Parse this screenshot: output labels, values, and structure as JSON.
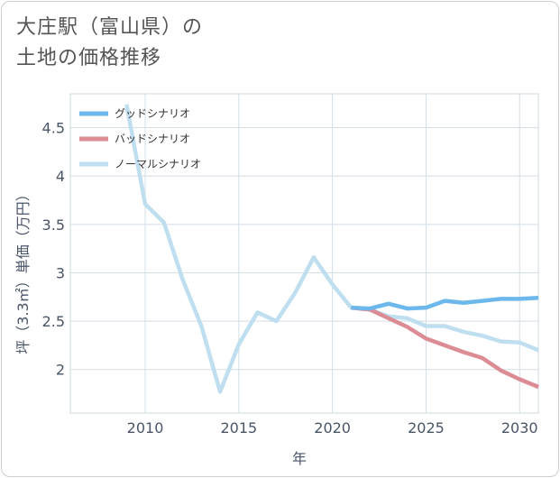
{
  "title_lines": [
    "大庄駅（富山県）の",
    "土地の価格推移"
  ],
  "chart_data": {
    "type": "line",
    "title": "大庄駅（富山県）の土地の価格推移",
    "xlabel": "年",
    "ylabel": "坪（3.3㎡）単価（万円）",
    "xlim": [
      2006,
      2031
    ],
    "ylim": [
      1.55,
      4.85
    ],
    "xticks": [
      2010,
      2015,
      2020,
      2025,
      2030
    ],
    "yticks": [
      2,
      2.5,
      3,
      3.5,
      4,
      4.5
    ],
    "grid": true,
    "legend_position": "top-left",
    "series": [
      {
        "name": "グッドシナリオ",
        "color": "#6cb8ec",
        "x": [
          2021,
          2022,
          2023,
          2024,
          2025,
          2026,
          2027,
          2028,
          2029,
          2030,
          2031
        ],
        "values": [
          2.64,
          2.63,
          2.68,
          2.63,
          2.64,
          2.71,
          2.69,
          2.71,
          2.73,
          2.73,
          2.74
        ]
      },
      {
        "name": "バッドシナリオ",
        "color": "#dc8c94",
        "x": [
          2021,
          2022,
          2023,
          2024,
          2025,
          2026,
          2027,
          2028,
          2029,
          2030,
          2031
        ],
        "values": [
          2.64,
          2.62,
          2.53,
          2.44,
          2.32,
          2.25,
          2.18,
          2.12,
          1.99,
          1.9,
          1.82
        ]
      },
      {
        "name": "ノーマルシナリオ",
        "color": "#bfdff0",
        "x": [
          2009,
          2010,
          2011,
          2012,
          2013,
          2014,
          2015,
          2016,
          2017,
          2018,
          2019,
          2020,
          2021,
          2022,
          2023,
          2024,
          2025,
          2026,
          2027,
          2028,
          2029,
          2030,
          2031
        ],
        "values": [
          4.74,
          3.71,
          3.52,
          2.93,
          2.45,
          1.77,
          2.26,
          2.59,
          2.5,
          2.79,
          3.16,
          2.88,
          2.64,
          2.62,
          2.55,
          2.53,
          2.45,
          2.45,
          2.39,
          2.35,
          2.29,
          2.28,
          2.2
        ]
      }
    ]
  }
}
